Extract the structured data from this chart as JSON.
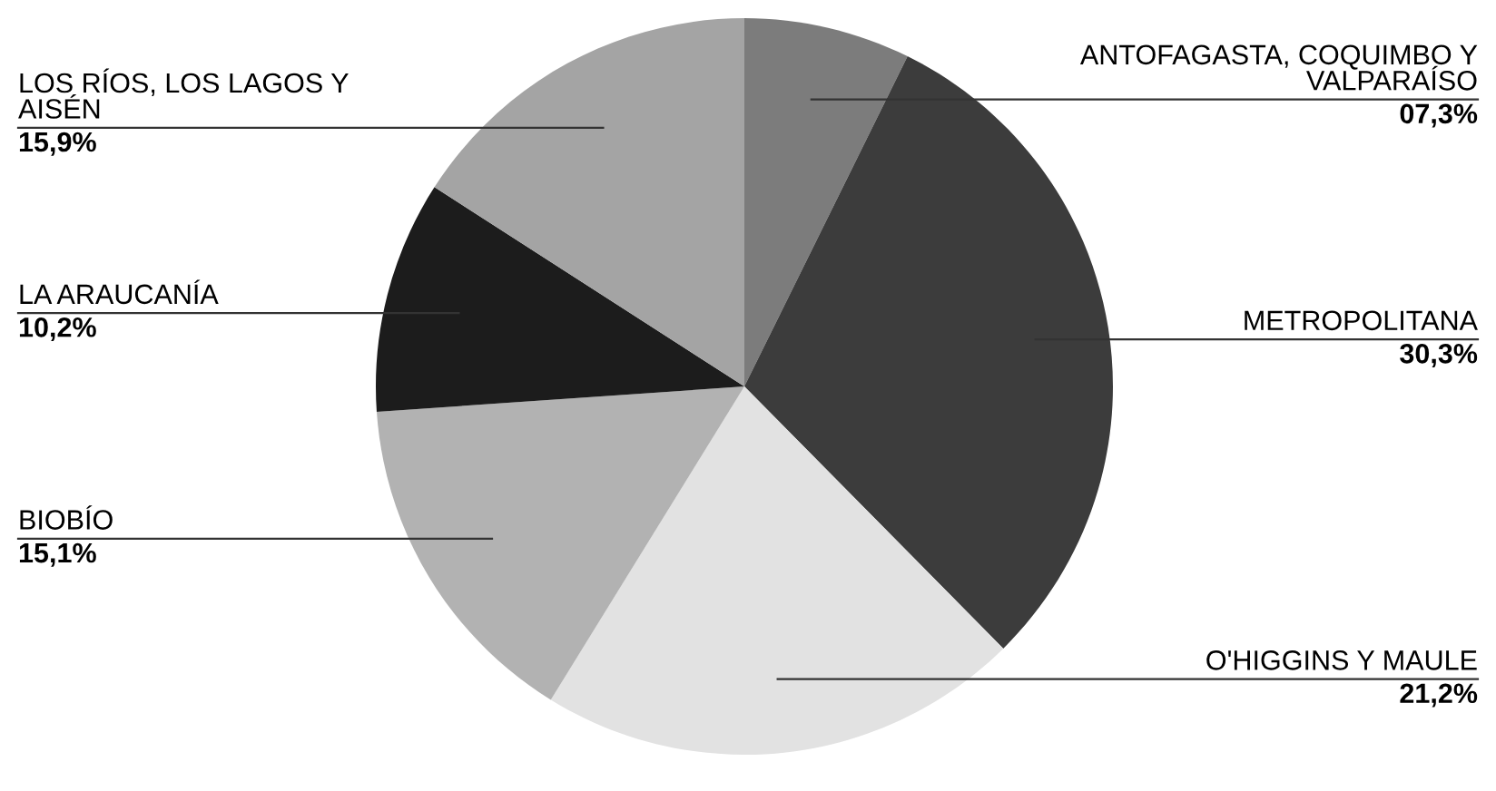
{
  "chart_data": {
    "type": "pie",
    "categories": [
      "ANTOFAGASTA, COQUIMBO Y\nVALPARAÍSO",
      "METROPOLITANA",
      "O'HIGGINS Y MAULE",
      "BIOBÍO",
      "LA ARAUCANÍA",
      "LOS RÍOS, LOS LAGOS Y\nAISÉN"
    ],
    "values": [
      7.3,
      30.3,
      21.2,
      15.1,
      10.2,
      15.9
    ],
    "value_labels": [
      "07,3%",
      "30,3%",
      "21,2%",
      "15,1%",
      "10,2%",
      "15,9%"
    ],
    "colors": [
      "#7c7c7c",
      "#3c3c3c",
      "#e2e2e2",
      "#b2b2b2",
      "#1c1c1c",
      "#a4a4a4"
    ]
  }
}
